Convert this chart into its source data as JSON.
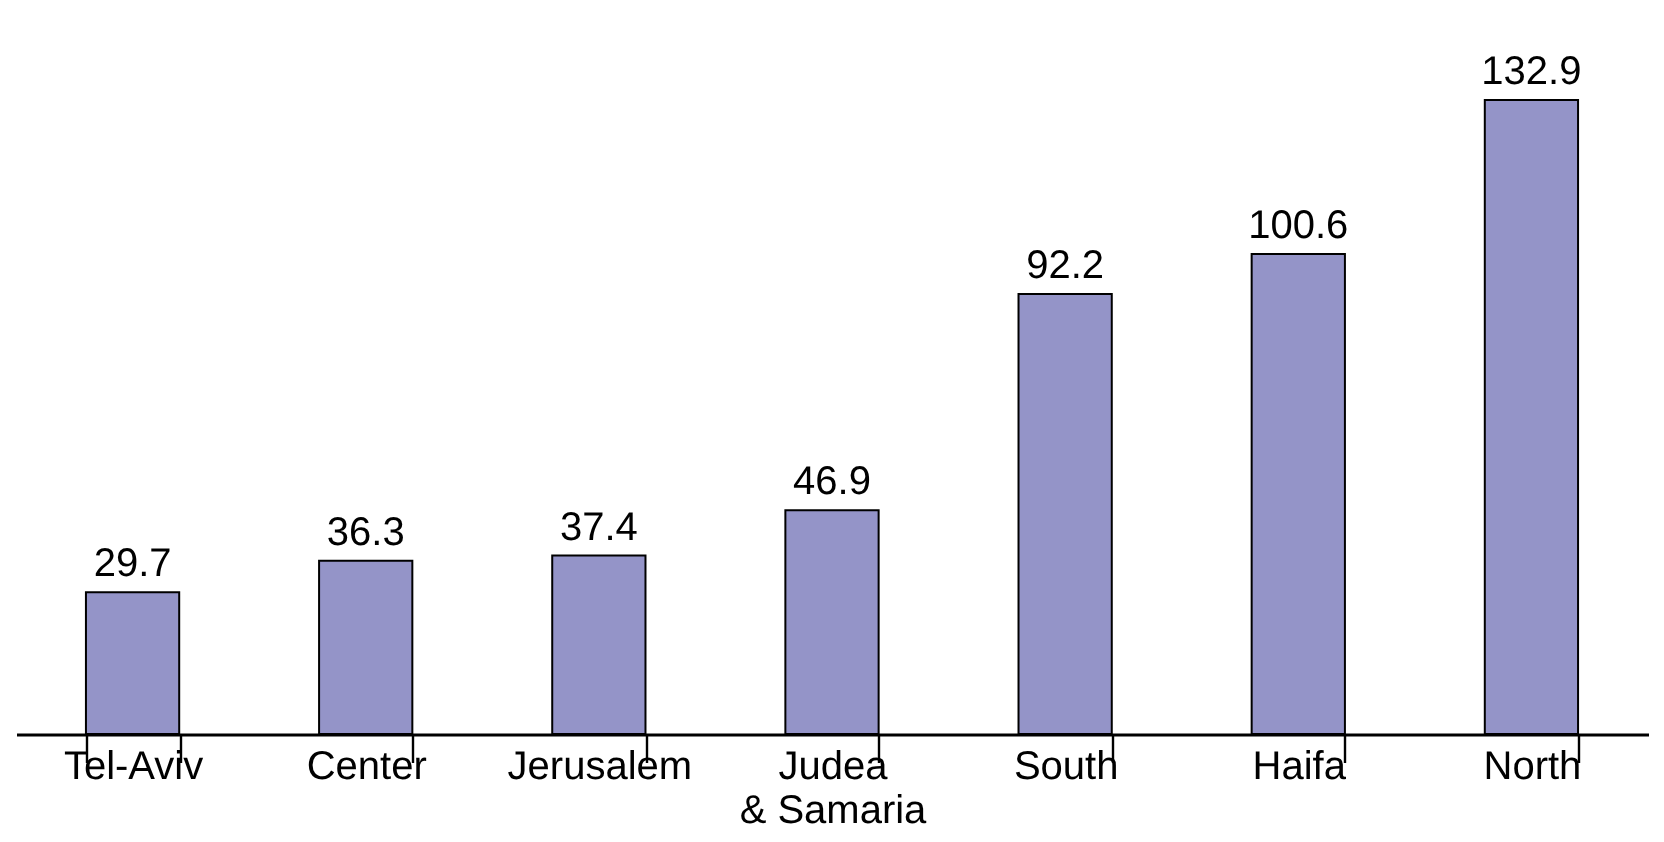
{
  "chart_data": {
    "type": "bar",
    "categories": [
      "Tel-Aviv",
      "Center",
      "Jerusalem",
      "Judea & Samaria",
      "South",
      "Haifa",
      "North"
    ],
    "values": [
      29.7,
      36.3,
      37.4,
      46.9,
      92.2,
      100.6,
      132.9
    ],
    "color": "#9494c8",
    "data_labels": true,
    "tick_labels": "x",
    "grid": false
  }
}
